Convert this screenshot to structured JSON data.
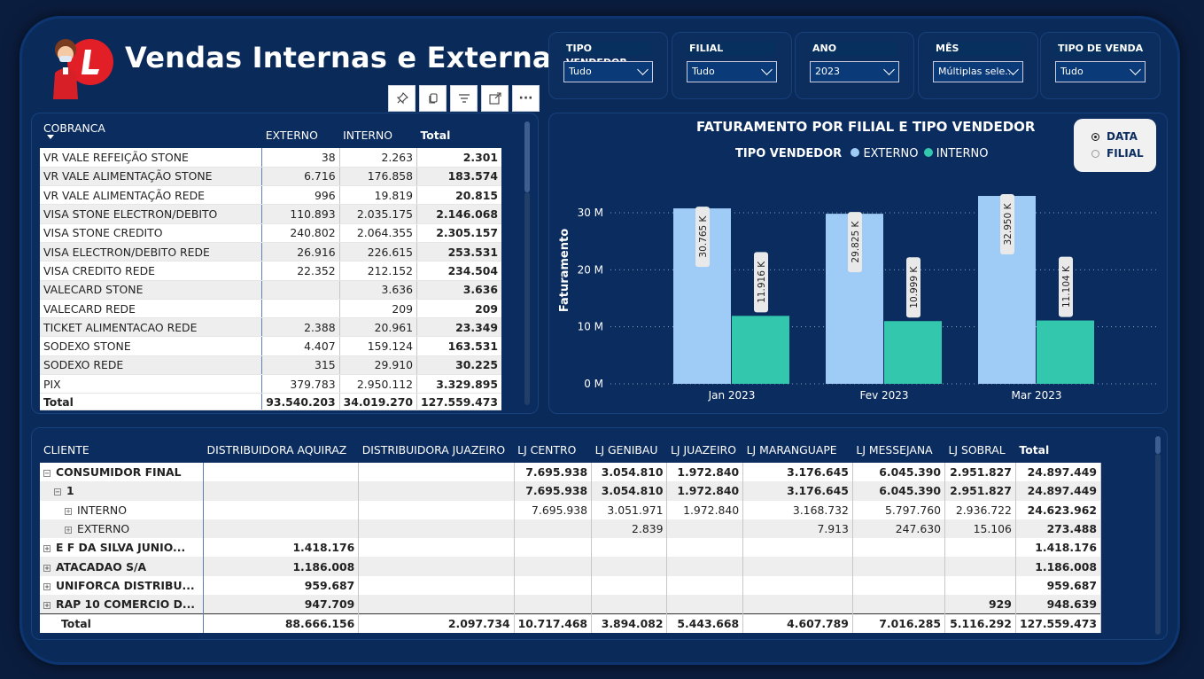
{
  "title": "Vendas Internas e Externas",
  "toolbar": {
    "icons": [
      "pin-icon",
      "copy-icon",
      "filter-icon",
      "focus-mode-icon",
      "more-options-icon"
    ],
    "more_label": "···"
  },
  "slicers": [
    {
      "label": "TIPO VENDEDOR",
      "value": "Tudo"
    },
    {
      "label": "FILIAL",
      "value": "Tudo"
    },
    {
      "label": "ANO",
      "value": "2023"
    },
    {
      "label": "MÊS",
      "value": "Múltiplas sele..."
    },
    {
      "label": "TIPO DE VENDA",
      "value": "Tudo"
    }
  ],
  "cobranca_table": {
    "headers": [
      "COBRANCA",
      "EXTERNO",
      "INTERNO",
      "Total"
    ],
    "rows": [
      [
        "VR VALE REFEIÇÃO STONE",
        "38",
        "2.263",
        "2.301"
      ],
      [
        "VR VALE ALIMENTAÇÃO STONE",
        "6.716",
        "176.858",
        "183.574"
      ],
      [
        "VR VALE ALIMENTAÇÃO REDE",
        "996",
        "19.819",
        "20.815"
      ],
      [
        "VISA STONE ELECTRON/DEBITO",
        "110.893",
        "2.035.175",
        "2.146.068"
      ],
      [
        "VISA STONE CREDITO",
        "240.802",
        "2.064.355",
        "2.305.157"
      ],
      [
        "VISA ELECTRON/DEBITO REDE",
        "26.916",
        "226.615",
        "253.531"
      ],
      [
        "VISA CREDITO REDE",
        "22.352",
        "212.152",
        "234.504"
      ],
      [
        "VALECARD STONE",
        "",
        "3.636",
        "3.636"
      ],
      [
        "VALECARD REDE",
        "",
        "209",
        "209"
      ],
      [
        "TICKET ALIMENTACAO REDE",
        "2.388",
        "20.961",
        "23.349"
      ],
      [
        "SODEXO STONE",
        "4.407",
        "159.124",
        "163.531"
      ],
      [
        "SODEXO REDE",
        "315",
        "29.910",
        "30.225"
      ],
      [
        "PIX",
        "379.783",
        "2.950.112",
        "3.329.895"
      ]
    ],
    "total": [
      "Total",
      "93.540.203",
      "34.019.270",
      "127.559.473"
    ]
  },
  "chart": {
    "title": "FATURAMENTO POR FILIAL E TIPO VENDEDOR",
    "legend_title": "TIPO VENDEDOR",
    "radio_options": [
      "DATA",
      "FILIAL"
    ],
    "selected_option": "DATA"
  },
  "chart_data": {
    "type": "bar",
    "title": "FATURAMENTO POR FILIAL E TIPO VENDEDOR",
    "categories": [
      "Jan 2023",
      "Fev 2023",
      "Mar 2023"
    ],
    "series": [
      {
        "name": "EXTERNO",
        "color": "#9fcbf7",
        "values": [
          30765,
          29825,
          32950
        ],
        "labels": [
          "30.765 K",
          "29.825 K",
          "32.950 K"
        ]
      },
      {
        "name": "INTERNO",
        "color": "#33c8ad",
        "values": [
          11916,
          10999,
          11104
        ],
        "labels": [
          "11.916 K",
          "10.999 K",
          "11.104 K"
        ]
      }
    ],
    "ylabel": "Faturamento",
    "yticks": [
      "0 M",
      "10 M",
      "20 M",
      "30 M"
    ],
    "ylim": [
      0,
      33000
    ],
    "grid": true,
    "legend_position": "top"
  },
  "cliente_table": {
    "headers": [
      "CLIENTE",
      "DISTRIBUIDORA AQUIRAZ",
      "DISTRIBUIDORA JUAZEIRO",
      "LJ CENTRO",
      "LJ GENIBAU",
      "LJ JUAZEIRO",
      "LJ MARANGUAPE",
      "LJ MESSEJANA",
      "LJ SOBRAL",
      "Total"
    ],
    "rows": [
      {
        "level": 0,
        "expander": "⊟",
        "bold": true,
        "cells": [
          "CONSUMIDOR FINAL",
          "",
          "",
          "7.695.938",
          "3.054.810",
          "1.972.840",
          "3.176.645",
          "6.045.390",
          "2.951.827",
          "24.897.449"
        ]
      },
      {
        "level": 1,
        "expander": "⊟",
        "bold": true,
        "cells": [
          "1",
          "",
          "",
          "7.695.938",
          "3.054.810",
          "1.972.840",
          "3.176.645",
          "6.045.390",
          "2.951.827",
          "24.897.449"
        ]
      },
      {
        "level": 2,
        "expander": "⊞",
        "bold": false,
        "cells": [
          "INTERNO",
          "",
          "",
          "7.695.938",
          "3.051.971",
          "1.972.840",
          "3.168.732",
          "5.797.760",
          "2.936.722",
          "24.623.962"
        ]
      },
      {
        "level": 2,
        "expander": "⊞",
        "bold": false,
        "cells": [
          "EXTERNO",
          "",
          "",
          "",
          "2.839",
          "",
          "7.913",
          "247.630",
          "15.106",
          "273.488"
        ]
      },
      {
        "level": 0,
        "expander": "⊞",
        "bold": true,
        "cells": [
          "E F DA SILVA JUNIO...",
          "1.418.176",
          "",
          "",
          "",
          "",
          "",
          "",
          "",
          "1.418.176"
        ]
      },
      {
        "level": 0,
        "expander": "⊞",
        "bold": true,
        "cells": [
          "ATACADAO S/A",
          "1.186.008",
          "",
          "",
          "",
          "",
          "",
          "",
          "",
          "1.186.008"
        ]
      },
      {
        "level": 0,
        "expander": "⊞",
        "bold": true,
        "cells": [
          "UNIFORCA DISTRIBU...",
          "959.687",
          "",
          "",
          "",
          "",
          "",
          "",
          "",
          "959.687"
        ]
      },
      {
        "level": 0,
        "expander": "⊞",
        "bold": true,
        "cells": [
          "RAP 10 COMERCIO D...",
          "947.709",
          "",
          "",
          "",
          "",
          "",
          "",
          "929",
          "948.639"
        ]
      }
    ],
    "total": [
      "Total",
      "88.666.156",
      "2.097.734",
      "10.717.468",
      "3.894.082",
      "5.443.668",
      "4.607.789",
      "7.016.285",
      "5.116.292",
      "127.559.473"
    ]
  }
}
